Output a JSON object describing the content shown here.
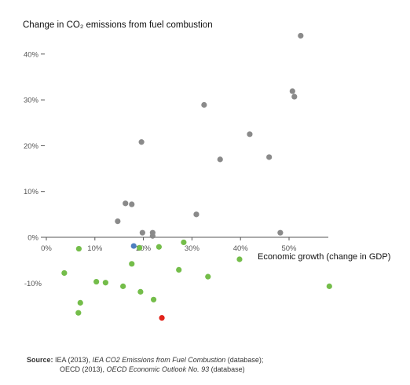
{
  "chart_data": {
    "type": "scatter",
    "title": "Change in CO₂ emissions from fuel combustion",
    "xlabel": "Economic growth (change in GDP)",
    "ylabel": "",
    "xlim": [
      -1.5,
      58
    ],
    "ylim": [
      -20,
      45
    ],
    "x_ticks": [
      0,
      10,
      20,
      30,
      40,
      50
    ],
    "x_tick_labels": [
      "0%",
      "10%",
      "20%",
      "30%",
      "40%",
      "50%"
    ],
    "y_ticks": [
      0,
      10,
      20,
      30,
      40
    ],
    "y_tick_labels": [
      "0%",
      "10%",
      "20%",
      "30%",
      "40%"
    ],
    "y_negative_labels": [
      {
        "value": -10,
        "label": "-10%"
      }
    ],
    "grid": false,
    "colors": {
      "gray": "#8a8a8a",
      "green": "#74bd4a",
      "blue": "#4f7fbf",
      "red": "#e2231a",
      "axis": "#555555"
    },
    "points": [
      {
        "x": 14.7,
        "y": 3.5,
        "color": "gray"
      },
      {
        "x": 16.3,
        "y": 7.4,
        "color": "gray"
      },
      {
        "x": 17.6,
        "y": 7.2,
        "color": "gray"
      },
      {
        "x": 19.6,
        "y": 20.8,
        "color": "gray"
      },
      {
        "x": 19.8,
        "y": 1.0,
        "color": "gray"
      },
      {
        "x": 21.9,
        "y": 1.0,
        "color": "gray"
      },
      {
        "x": 21.9,
        "y": 0.3,
        "color": "gray"
      },
      {
        "x": 30.9,
        "y": 5.0,
        "color": "gray"
      },
      {
        "x": 32.5,
        "y": 28.9,
        "color": "gray"
      },
      {
        "x": 35.8,
        "y": 17.0,
        "color": "gray"
      },
      {
        "x": 41.9,
        "y": 22.5,
        "color": "gray"
      },
      {
        "x": 45.9,
        "y": 17.5,
        "color": "gray"
      },
      {
        "x": 48.2,
        "y": 1.0,
        "color": "gray"
      },
      {
        "x": 50.7,
        "y": 31.9,
        "color": "gray"
      },
      {
        "x": 51.1,
        "y": 30.7,
        "color": "gray"
      },
      {
        "x": 52.4,
        "y": 44.0,
        "color": "gray"
      },
      {
        "x": 3.7,
        "y": -7.8,
        "color": "green"
      },
      {
        "x": 6.7,
        "y": -2.5,
        "color": "green"
      },
      {
        "x": 6.6,
        "y": -16.5,
        "color": "green"
      },
      {
        "x": 7.0,
        "y": -14.3,
        "color": "green"
      },
      {
        "x": 10.3,
        "y": -9.7,
        "color": "green"
      },
      {
        "x": 12.2,
        "y": -9.9,
        "color": "green"
      },
      {
        "x": 15.8,
        "y": -10.7,
        "color": "green"
      },
      {
        "x": 17.6,
        "y": -5.8,
        "color": "green"
      },
      {
        "x": 19.2,
        "y": -2.3,
        "color": "green"
      },
      {
        "x": 19.4,
        "y": -11.9,
        "color": "green"
      },
      {
        "x": 22.1,
        "y": -13.6,
        "color": "green"
      },
      {
        "x": 23.2,
        "y": -2.1,
        "color": "green"
      },
      {
        "x": 27.3,
        "y": -7.1,
        "color": "green"
      },
      {
        "x": 28.3,
        "y": -1.1,
        "color": "green"
      },
      {
        "x": 33.3,
        "y": -8.6,
        "color": "green"
      },
      {
        "x": 39.8,
        "y": -4.8,
        "color": "green"
      },
      {
        "x": 58.3,
        "y": -10.7,
        "color": "green"
      },
      {
        "x": 18.0,
        "y": -1.9,
        "color": "blue"
      },
      {
        "x": 23.8,
        "y": -17.6,
        "color": "red"
      }
    ]
  },
  "source": {
    "label": "Source:",
    "line1_pre": "IEA (2013), ",
    "line1_ital": "IEA CO2 Emissions from Fuel Combustion",
    "line1_post": " (database);",
    "line2_pre": "OECD (2013), ",
    "line2_ital": "OECD Economic Outlook No. 93",
    "line2_post": " (database)"
  }
}
